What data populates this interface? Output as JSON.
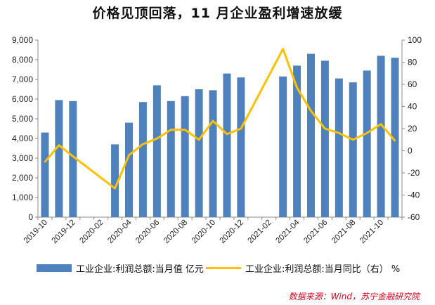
{
  "title": "价格见顶回落，11 月企业盈利增速放缓",
  "legend": {
    "bar_label": "工业企业:利润总额:当月值 亿元",
    "line_label": "工业企业:利润总额:当月同比（右） %"
  },
  "source": "数据来源：Wind，苏宁金融研究院",
  "colors": {
    "bar": "#4f81bd",
    "line": "#ffc000"
  },
  "chart_data": {
    "type": "bar",
    "categories": [
      "2019-10",
      "2019-11",
      "2019-12",
      "2020-01",
      "2020-02",
      "2020-03",
      "2020-04",
      "2020-05",
      "2020-06",
      "2020-07",
      "2020-08",
      "2020-09",
      "2020-10",
      "2020-11",
      "2020-12",
      "2021-01",
      "2021-02",
      "2021-03",
      "2021-04",
      "2021-05",
      "2021-06",
      "2021-07",
      "2021-08",
      "2021-09",
      "2021-10",
      "2021-11"
    ],
    "x_tick_labels": [
      "2019-10",
      "2019-12",
      "2020-02",
      "2020-04",
      "2020-06",
      "2020-08",
      "2020-10",
      "2020-12",
      "2021-02",
      "2021-04",
      "2021-06",
      "2021-08",
      "2021-10"
    ],
    "series": [
      {
        "name": "工业企业:利润总额:当月值 亿元",
        "type": "bar",
        "axis": "left",
        "values": [
          4300,
          5950,
          5900,
          null,
          null,
          3700,
          4800,
          5850,
          6700,
          5900,
          6150,
          6500,
          6450,
          7300,
          7100,
          null,
          null,
          7150,
          7700,
          8300,
          7950,
          7050,
          6850,
          7450,
          8200,
          8100
        ]
      },
      {
        "name": "工业企业:利润总额:当月同比（右） %",
        "type": "line",
        "axis": "right",
        "values": [
          -10,
          5,
          -5,
          null,
          null,
          -34,
          -4,
          6,
          11,
          19,
          19,
          10,
          27,
          15,
          20,
          null,
          null,
          92,
          57,
          36,
          20,
          16,
          10,
          16,
          24,
          9
        ]
      }
    ],
    "y_left": {
      "ylim": [
        0,
        9000
      ],
      "ticks": [
        "0",
        "1,000",
        "2,000",
        "3,000",
        "4,000",
        "5,000",
        "6,000",
        "7,000",
        "8,000",
        "9,000"
      ]
    },
    "y_right": {
      "ylim": [
        -60,
        100
      ],
      "ticks": [
        "-60",
        "-40",
        "-20",
        "0",
        "20",
        "40",
        "60",
        "80",
        "100"
      ]
    },
    "grid": false,
    "legend_position": "bottom"
  }
}
